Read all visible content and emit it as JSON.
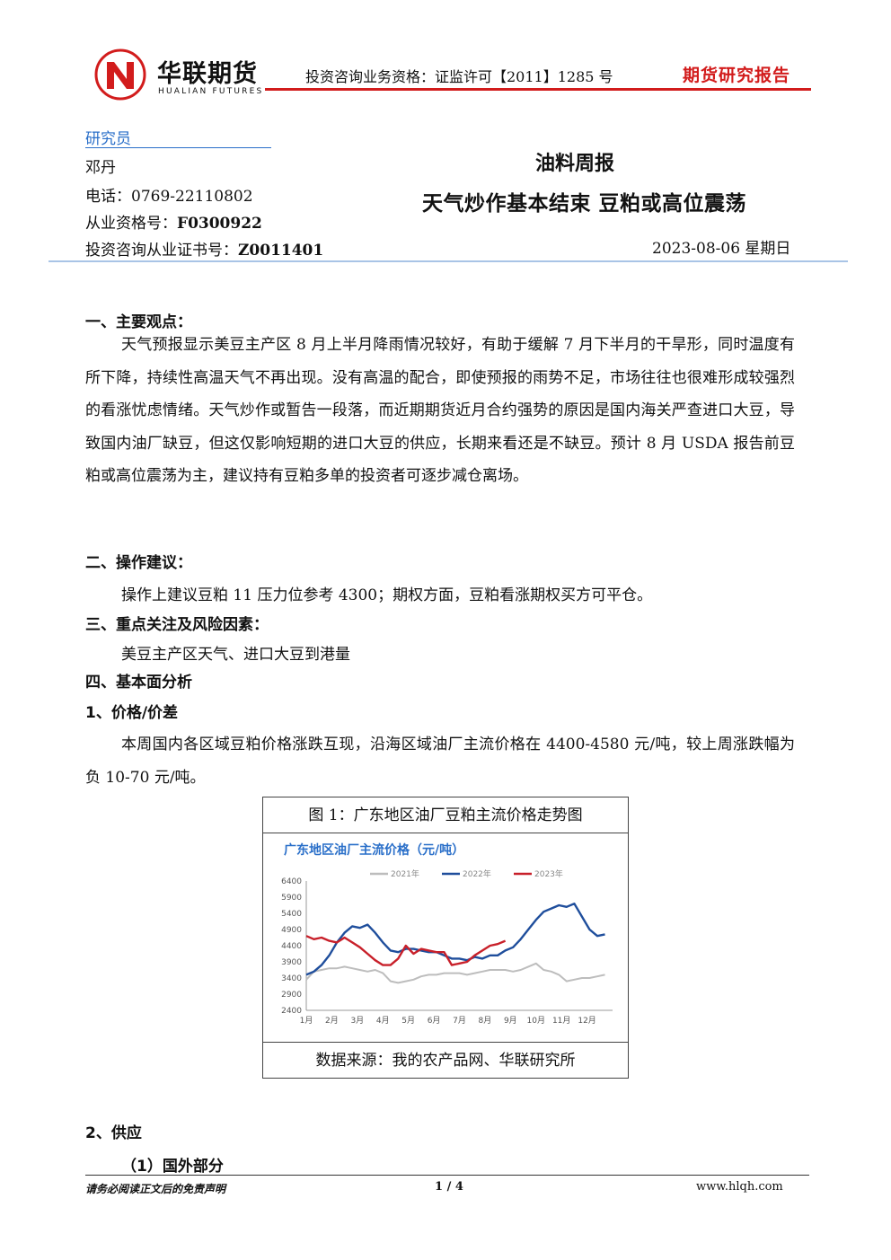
{
  "header": {
    "brand_cn": "华联期货",
    "brand_en": "HUALIAN FUTURES",
    "qualification": "投资咨询业务资格：证监许可【2011】1285 号",
    "report_type": "期货研究报告",
    "logo_letter": "N"
  },
  "researcher": {
    "title": "研究员",
    "name": "邓丹",
    "phone_label": "电话：",
    "phone": "0769-22110802",
    "license_label": "从业资格号：",
    "license": "F0300922",
    "cert_label": "投资咨询从业证书号：",
    "cert": "Z0011401"
  },
  "report": {
    "series": "油料周报",
    "headline": "天气炒作基本结束 豆粕或高位震荡",
    "date": "2023-08-06 星期日"
  },
  "sections": {
    "s1_title": "一、主要观点：",
    "s1_text": "天气预报显示美豆主产区 8 月上半月降雨情况较好，有助于缓解 7 月下半月的干旱形，同时温度有所下降，持续性高温天气不再出现。没有高温的配合，即使预报的雨势不足，市场往往也很难形成较强烈的看涨忧虑情绪。天气炒作或暂告一段落，而近期期货近月合约强势的原因是国内海关严查进口大豆，导致国内油厂缺豆，但这仅影响短期的进口大豆的供应，长期来看还是不缺豆。预计 8 月 USDA 报告前豆粕或高位震荡为主，建议持有豆粕多单的投资者可逐步减仓离场。",
    "s2_title": "二、操作建议：",
    "s2_text": "操作上建议豆粕 11 压力位参考 4300；期权方面，豆粕看涨期权买方可平仓。",
    "s3_title": "三、重点关注及风险因素：",
    "s3_text": "美豆主产区天气、进口大豆到港量",
    "s4_title": "四、基本面分析",
    "s4_1_title": "1、价格/价差",
    "s4_1_text": "本周国内各区域豆粕价格涨跌互现，沿海区域油厂主流价格在 4400-4580 元/吨，较上周涨跌幅为负 10-70 元/吨。",
    "s4_2_title": "2、供应",
    "s4_2_1_title": "（1）国外部分"
  },
  "figure": {
    "caption": "图 1：广东地区油厂豆粕主流价格走势图",
    "source": "数据来源：我的农产品网、华联研究所"
  },
  "chart_data": {
    "type": "line",
    "title": "广东地区油厂主流价格（元/吨）",
    "categories": [
      "1月",
      "2月",
      "3月",
      "4月",
      "5月",
      "6月",
      "7月",
      "8月",
      "9月",
      "10月",
      "11月",
      "12月"
    ],
    "ylim": [
      2400,
      6400
    ],
    "yticks": [
      2400,
      2900,
      3400,
      3900,
      4400,
      4900,
      5400,
      5900,
      6400
    ],
    "legend_position": "top",
    "series": [
      {
        "name": "2021年",
        "color": "#bdbdbd",
        "x": [
          0,
          0.3,
          0.6,
          0.9,
          1.2,
          1.5,
          1.8,
          2.1,
          2.4,
          2.7,
          3.0,
          3.3,
          3.6,
          3.9,
          4.2,
          4.5,
          4.8,
          5.1,
          5.4,
          5.7,
          6.0,
          6.3,
          6.6,
          6.9,
          7.2,
          7.5,
          7.8,
          8.1,
          8.4,
          8.7,
          9.0,
          9.3,
          9.6,
          9.9,
          10.2,
          10.5,
          10.8,
          11.1,
          11.4,
          11.7
        ],
        "values": [
          3350,
          3600,
          3650,
          3700,
          3700,
          3750,
          3700,
          3650,
          3600,
          3650,
          3550,
          3300,
          3250,
          3300,
          3350,
          3450,
          3500,
          3500,
          3550,
          3550,
          3550,
          3500,
          3550,
          3600,
          3650,
          3650,
          3650,
          3600,
          3650,
          3750,
          3850,
          3650,
          3600,
          3500,
          3300,
          3350,
          3400,
          3400,
          3450,
          3500
        ]
      },
      {
        "name": "2022年",
        "color": "#1f4e9c",
        "x": [
          0,
          0.3,
          0.6,
          0.9,
          1.2,
          1.5,
          1.8,
          2.1,
          2.4,
          2.7,
          3.0,
          3.3,
          3.6,
          3.9,
          4.2,
          4.5,
          4.8,
          5.1,
          5.4,
          5.7,
          6.0,
          6.3,
          6.6,
          6.9,
          7.2,
          7.5,
          7.8,
          8.1,
          8.4,
          8.7,
          9.0,
          9.3,
          9.6,
          9.9,
          10.2,
          10.5,
          10.8,
          11.1,
          11.4,
          11.7
        ],
        "values": [
          3500,
          3600,
          3800,
          4100,
          4500,
          4800,
          5000,
          4950,
          5050,
          4800,
          4500,
          4250,
          4200,
          4300,
          4300,
          4250,
          4200,
          4200,
          4100,
          4000,
          4000,
          3950,
          4050,
          4000,
          4100,
          4100,
          4250,
          4350,
          4600,
          4900,
          5200,
          5450,
          5550,
          5650,
          5600,
          5700,
          5300,
          4900,
          4700,
          4750
        ]
      },
      {
        "name": "2023年",
        "color": "#c8202a",
        "x": [
          0,
          0.3,
          0.6,
          0.9,
          1.2,
          1.5,
          1.8,
          2.1,
          2.4,
          2.7,
          3.0,
          3.3,
          3.6,
          3.9,
          4.2,
          4.5,
          4.8,
          5.1,
          5.4,
          5.7,
          6.0,
          6.3,
          6.6,
          6.9,
          7.2,
          7.5,
          7.8
        ],
        "values": [
          4700,
          4600,
          4650,
          4550,
          4500,
          4650,
          4500,
          4350,
          4150,
          3950,
          3800,
          3800,
          4000,
          4400,
          4150,
          4300,
          4250,
          4200,
          4200,
          3800,
          3850,
          3900,
          4100,
          4250,
          4400,
          4450,
          4550
        ]
      }
    ]
  },
  "footer": {
    "disclaimer": "请务必阅读正文后的免责声明",
    "page": "1 / 4",
    "url": "www.hlqh.com"
  }
}
